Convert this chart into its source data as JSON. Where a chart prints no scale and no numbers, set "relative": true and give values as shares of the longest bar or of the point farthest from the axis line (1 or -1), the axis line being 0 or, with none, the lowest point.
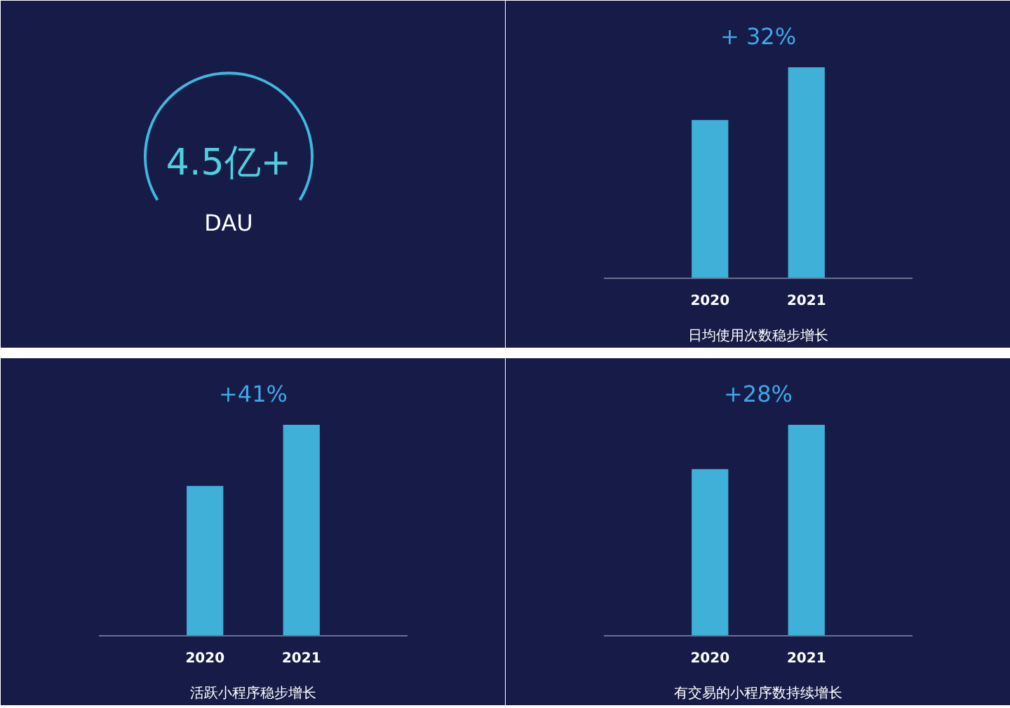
{
  "chart_data": [
    {
      "type": "other",
      "annotations": [
        "4.5亿+",
        "DAU"
      ]
    },
    {
      "type": "bar",
      "title": "+ 32%",
      "xlabel": "日均使用次数稳步增长",
      "categories": [
        "2020",
        "2021"
      ],
      "values": [
        0.75,
        1
      ],
      "color": "#3fb0d8",
      "relative": true,
      "grid": false
    },
    {
      "type": "bar",
      "title": "+41%",
      "xlabel": "活跃小程序稳步增长",
      "categories": [
        "2020",
        "2021"
      ],
      "values": [
        0.71,
        1
      ],
      "color": "#3fb0d8",
      "relative": true,
      "grid": false
    },
    {
      "type": "bar",
      "title": "+28%",
      "xlabel": "有交易的小程序数持续增长",
      "categories": [
        "2020",
        "2021"
      ],
      "values": [
        0.79,
        1
      ],
      "color": "#3fb0d8",
      "relative": true,
      "grid": false
    }
  ]
}
